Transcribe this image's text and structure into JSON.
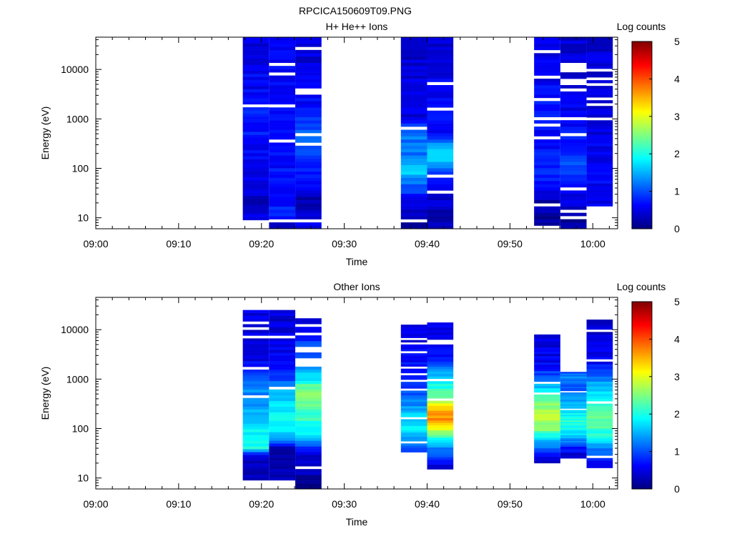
{
  "figure_title": "RPCICA150609T09.PNG",
  "colorbar": {
    "label": "Log counts",
    "ticks": [
      "0",
      "1",
      "2",
      "3",
      "4",
      "5"
    ],
    "range": [
      0,
      5
    ],
    "colormap": [
      "#00007f",
      "#0000ff",
      "#007fff",
      "#00ffff",
      "#7fff7f",
      "#ffff00",
      "#ff7f00",
      "#ff0000",
      "#7f0000"
    ]
  },
  "chart_data": [
    {
      "type": "heatmap",
      "title": "H+ He++ Ions",
      "xlabel": "Time",
      "ylabel": "Energy (eV)",
      "y_scale": "log",
      "x_range": [
        "09:00",
        "10:03"
      ],
      "y_range": [
        6,
        45000
      ],
      "x_ticks": [
        "09:00",
        "09:10",
        "09:20",
        "09:30",
        "09:40",
        "09:50",
        "10:00"
      ],
      "y_ticks": [
        "10",
        "100",
        "1000",
        "10000"
      ],
      "columns": [
        {
          "start": "09:17:45",
          "end": "09:20:55",
          "e_min": 9,
          "e_max": 45000,
          "profile": [
            [
              9,
              0.6
            ],
            [
              15,
              0.2
            ],
            [
              30,
              0.4
            ],
            [
              60,
              0.5
            ],
            [
              200,
              0.6
            ],
            [
              1000,
              0.8
            ],
            [
              4000,
              0.6
            ],
            [
              45000,
              0.5
            ]
          ]
        },
        {
          "start": "09:20:55",
          "end": "09:24:05",
          "e_min": 6,
          "e_max": 45000,
          "profile": [
            [
              6,
              0.2
            ],
            [
              12,
              0.8
            ],
            [
              30,
              0.6
            ],
            [
              100,
              0.7
            ],
            [
              500,
              0.7
            ],
            [
              3000,
              0.6
            ],
            [
              45000,
              0.5
            ]
          ]
        },
        {
          "start": "09:24:05",
          "end": "09:27:15",
          "e_min": 6,
          "e_max": 45000,
          "profile": [
            [
              6,
              0.6
            ],
            [
              25,
              0.2
            ],
            [
              60,
              0.8
            ],
            [
              150,
              0.8
            ],
            [
              400,
              1.2
            ],
            [
              1000,
              0.8
            ],
            [
              5000,
              0.5
            ],
            [
              45000,
              0.4
            ]
          ]
        },
        {
          "start": "09:36:50",
          "end": "09:40:00",
          "e_min": 6,
          "e_max": 45000,
          "profile": [
            [
              6,
              0.2
            ],
            [
              20,
              0.5
            ],
            [
              50,
              1.2
            ],
            [
              100,
              1.8
            ],
            [
              200,
              1.2
            ],
            [
              500,
              1.2
            ],
            [
              700,
              1.0
            ],
            [
              1000,
              0.5
            ],
            [
              45000,
              0.4
            ]
          ]
        },
        {
          "start": "09:40:00",
          "end": "09:43:10",
          "e_min": 6,
          "e_max": 45000,
          "profile": [
            [
              6,
              0.2
            ],
            [
              20,
              0.4
            ],
            [
              60,
              0.7
            ],
            [
              120,
              1.5
            ],
            [
              250,
              1.6
            ],
            [
              500,
              0.7
            ],
            [
              1500,
              0.6
            ],
            [
              45000,
              0.4
            ]
          ]
        },
        {
          "start": "09:52:55",
          "end": "09:56:05",
          "e_min": 6,
          "e_max": 45000,
          "profile": [
            [
              6,
              0.1
            ],
            [
              20,
              0.2
            ],
            [
              40,
              0.6
            ],
            [
              100,
              0.8
            ],
            [
              500,
              0.6
            ],
            [
              2000,
              0.7
            ],
            [
              10000,
              0.5
            ],
            [
              45000,
              0.5
            ]
          ]
        },
        {
          "start": "09:56:05",
          "end": "09:59:15",
          "e_min": 6,
          "e_max": 45000,
          "profile": [
            [
              6,
              0.1
            ],
            [
              12,
              0.3
            ],
            [
              40,
              0.6
            ],
            [
              90,
              1.0
            ],
            [
              200,
              0.9
            ],
            [
              1000,
              0.6
            ],
            [
              5000,
              0.5
            ],
            [
              45000,
              0.4
            ]
          ]
        },
        {
          "start": "09:59:15",
          "end": "10:02:25",
          "e_min": 15,
          "e_max": 45000,
          "profile": [
            [
              15,
              0.5
            ],
            [
              40,
              0.6
            ],
            [
              100,
              0.6
            ],
            [
              500,
              0.5
            ],
            [
              2000,
              0.5
            ],
            [
              45000,
              0.4
            ]
          ]
        }
      ]
    },
    {
      "type": "heatmap",
      "title": "Other Ions",
      "xlabel": "Time",
      "ylabel": "Energy (eV)",
      "y_scale": "log",
      "x_range": [
        "09:00",
        "10:03"
      ],
      "y_range": [
        6,
        45000
      ],
      "x_ticks": [
        "09:00",
        "09:10",
        "09:20",
        "09:30",
        "09:40",
        "09:50",
        "10:00"
      ],
      "y_ticks": [
        "10",
        "100",
        "1000",
        "10000"
      ],
      "columns": [
        {
          "start": "09:17:45",
          "end": "09:20:55",
          "e_min": 9,
          "e_max": 25000,
          "profile": [
            [
              9,
              0.2
            ],
            [
              30,
              0.4
            ],
            [
              40,
              2.0
            ],
            [
              80,
              1.9
            ],
            [
              150,
              1.5
            ],
            [
              400,
              1.4
            ],
            [
              800,
              1.2
            ],
            [
              1500,
              0.8
            ],
            [
              3000,
              0.4
            ],
            [
              25000,
              0.5
            ]
          ]
        },
        {
          "start": "09:20:55",
          "end": "09:24:05",
          "e_min": 9,
          "e_max": 25000,
          "profile": [
            [
              9,
              0.3
            ],
            [
              40,
              0.3
            ],
            [
              60,
              1.3
            ],
            [
              100,
              1.9
            ],
            [
              200,
              1.8
            ],
            [
              500,
              1.6
            ],
            [
              1000,
              1.0
            ],
            [
              2000,
              0.6
            ],
            [
              25000,
              0.4
            ]
          ]
        },
        {
          "start": "09:24:05",
          "end": "09:27:15",
          "e_min": 6,
          "e_max": 17000,
          "profile": [
            [
              6,
              0.1
            ],
            [
              35,
              0.5
            ],
            [
              50,
              1.3
            ],
            [
              100,
              2.0
            ],
            [
              300,
              2.3
            ],
            [
              600,
              2.6
            ],
            [
              1000,
              1.8
            ],
            [
              2500,
              1.2
            ],
            [
              17000,
              0.5
            ]
          ]
        },
        {
          "start": "09:36:50",
          "end": "09:40:00",
          "e_min": 30,
          "e_max": 14000,
          "profile": [
            [
              30,
              0.6
            ],
            [
              50,
              1.3
            ],
            [
              100,
              1.8
            ],
            [
              200,
              1.6
            ],
            [
              500,
              1.0
            ],
            [
              1500,
              0.7
            ],
            [
              14000,
              0.4
            ]
          ]
        },
        {
          "start": "09:40:00",
          "end": "09:43:10",
          "e_min": 15,
          "e_max": 14000,
          "profile": [
            [
              15,
              0.4
            ],
            [
              30,
              1.0
            ],
            [
              60,
              1.8
            ],
            [
              100,
              3.0
            ],
            [
              150,
              3.8
            ],
            [
              250,
              3.4
            ],
            [
              400,
              2.6
            ],
            [
              700,
              2.0
            ],
            [
              1500,
              1.3
            ],
            [
              3000,
              0.6
            ],
            [
              14000,
              0.5
            ]
          ]
        },
        {
          "start": "09:52:55",
          "end": "09:56:05",
          "e_min": 20,
          "e_max": 8000,
          "profile": [
            [
              20,
              0.3
            ],
            [
              35,
              1.0
            ],
            [
              60,
              1.6
            ],
            [
              100,
              2.6
            ],
            [
              200,
              2.8
            ],
            [
              400,
              2.4
            ],
            [
              800,
              1.4
            ],
            [
              2000,
              0.6
            ],
            [
              8000,
              0.4
            ]
          ]
        },
        {
          "start": "09:56:05",
          "end": "09:59:15",
          "e_min": 25,
          "e_max": 1500,
          "profile": [
            [
              25,
              0.3
            ],
            [
              40,
              0.7
            ],
            [
              80,
              1.8
            ],
            [
              150,
              2.1
            ],
            [
              300,
              1.6
            ],
            [
              600,
              1.0
            ],
            [
              1200,
              1.3
            ],
            [
              1500,
              0.8
            ]
          ]
        },
        {
          "start": "09:59:15",
          "end": "10:02:25",
          "e_min": 16,
          "e_max": 16000,
          "profile": [
            [
              16,
              0.4
            ],
            [
              30,
              1.0
            ],
            [
              60,
              1.8
            ],
            [
              120,
              2.4
            ],
            [
              300,
              2.2
            ],
            [
              700,
              1.6
            ],
            [
              1500,
              0.8
            ],
            [
              3000,
              0.5
            ],
            [
              16000,
              0.4
            ]
          ]
        }
      ]
    }
  ]
}
